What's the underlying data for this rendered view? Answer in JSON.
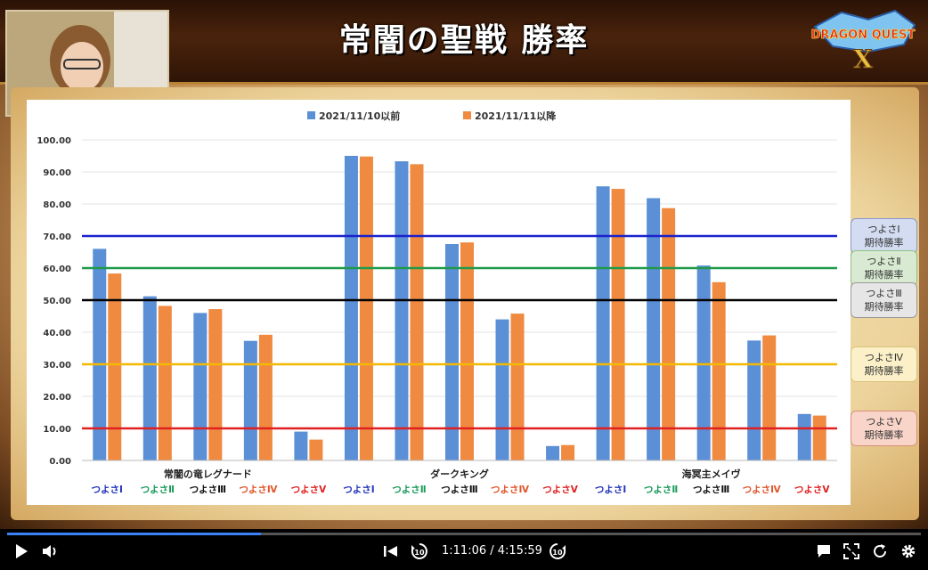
{
  "title": "常闇の聖戦 勝率",
  "logo_text": "DRAGON QUEST X",
  "chart_data": {
    "type": "bar",
    "series": [
      {
        "name": "2021/11/10以前",
        "color": "#5b8fd6",
        "values": [
          66.0,
          51.2,
          46.0,
          37.3,
          9.0,
          95.0,
          93.3,
          67.5,
          44.0,
          4.5,
          85.5,
          81.8,
          60.8,
          37.4,
          14.5
        ]
      },
      {
        "name": "2021/11/11以降",
        "color": "#ef8a40",
        "values": [
          58.3,
          48.2,
          47.2,
          39.2,
          6.5,
          94.8,
          92.4,
          68.0,
          45.8,
          4.8,
          84.7,
          78.7,
          55.6,
          39.0,
          14.0
        ]
      }
    ],
    "categories": [
      "つよさⅠ",
      "つよさⅡ",
      "つよさⅢ",
      "つよさⅣ",
      "つよさⅤ",
      "つよさⅠ",
      "つよさⅡ",
      "つよさⅢ",
      "つよさⅣ",
      "つよさⅤ",
      "つよさⅠ",
      "つよさⅡ",
      "つよさⅢ",
      "つよさⅣ",
      "つよさⅤ"
    ],
    "category_colors": [
      "#2233bb",
      "#1a9a5a",
      "#111111",
      "#e0552a",
      "#e02020",
      "#2233bb",
      "#1a9a5a",
      "#111111",
      "#e0552a",
      "#e02020",
      "#2233bb",
      "#1a9a5a",
      "#111111",
      "#e0552a",
      "#e02020"
    ],
    "groups": [
      "常闇の竜レグナード",
      "ダークキング",
      "海冥主メイヴ"
    ],
    "yticks": [
      "100.00",
      "90.00",
      "80.00",
      "70.00",
      "60.00",
      "50.00",
      "40.00",
      "30.00",
      "20.00",
      "10.00",
      "0.00"
    ],
    "ylim": [
      0,
      100
    ],
    "reference_lines": [
      {
        "value": 70,
        "color": "#1a22cc"
      },
      {
        "value": 60,
        "color": "#1f9a4a"
      },
      {
        "value": 50,
        "color": "#000000"
      },
      {
        "value": 30,
        "color": "#f5b800"
      },
      {
        "value": 10,
        "color": "#e02020"
      }
    ],
    "legend_position": "top",
    "grid": true
  },
  "badges": [
    {
      "line1": "つよさⅠ",
      "line2": "期待勝率",
      "bg": "#d3dcf1",
      "border": "#8a97c9"
    },
    {
      "line1": "つよさⅡ",
      "line2": "期待勝率",
      "bg": "#d8ebd2",
      "border": "#8fbf86"
    },
    {
      "line1": "つよさⅢ",
      "line2": "期待勝率",
      "bg": "#e6e6e6",
      "border": "#9a9a9a"
    },
    {
      "line1": "つよさⅣ",
      "line2": "期待勝率",
      "bg": "#fbf0c8",
      "border": "#d9c27a"
    },
    {
      "line1": "つよさⅤ",
      "line2": "期待勝率",
      "bg": "#f9d5c9",
      "border": "#d98f7a"
    }
  ],
  "player": {
    "time": "1:11:06 / 4:15:59",
    "progress": 0.278,
    "skip_back_label": "10",
    "skip_forward_label": "10"
  }
}
